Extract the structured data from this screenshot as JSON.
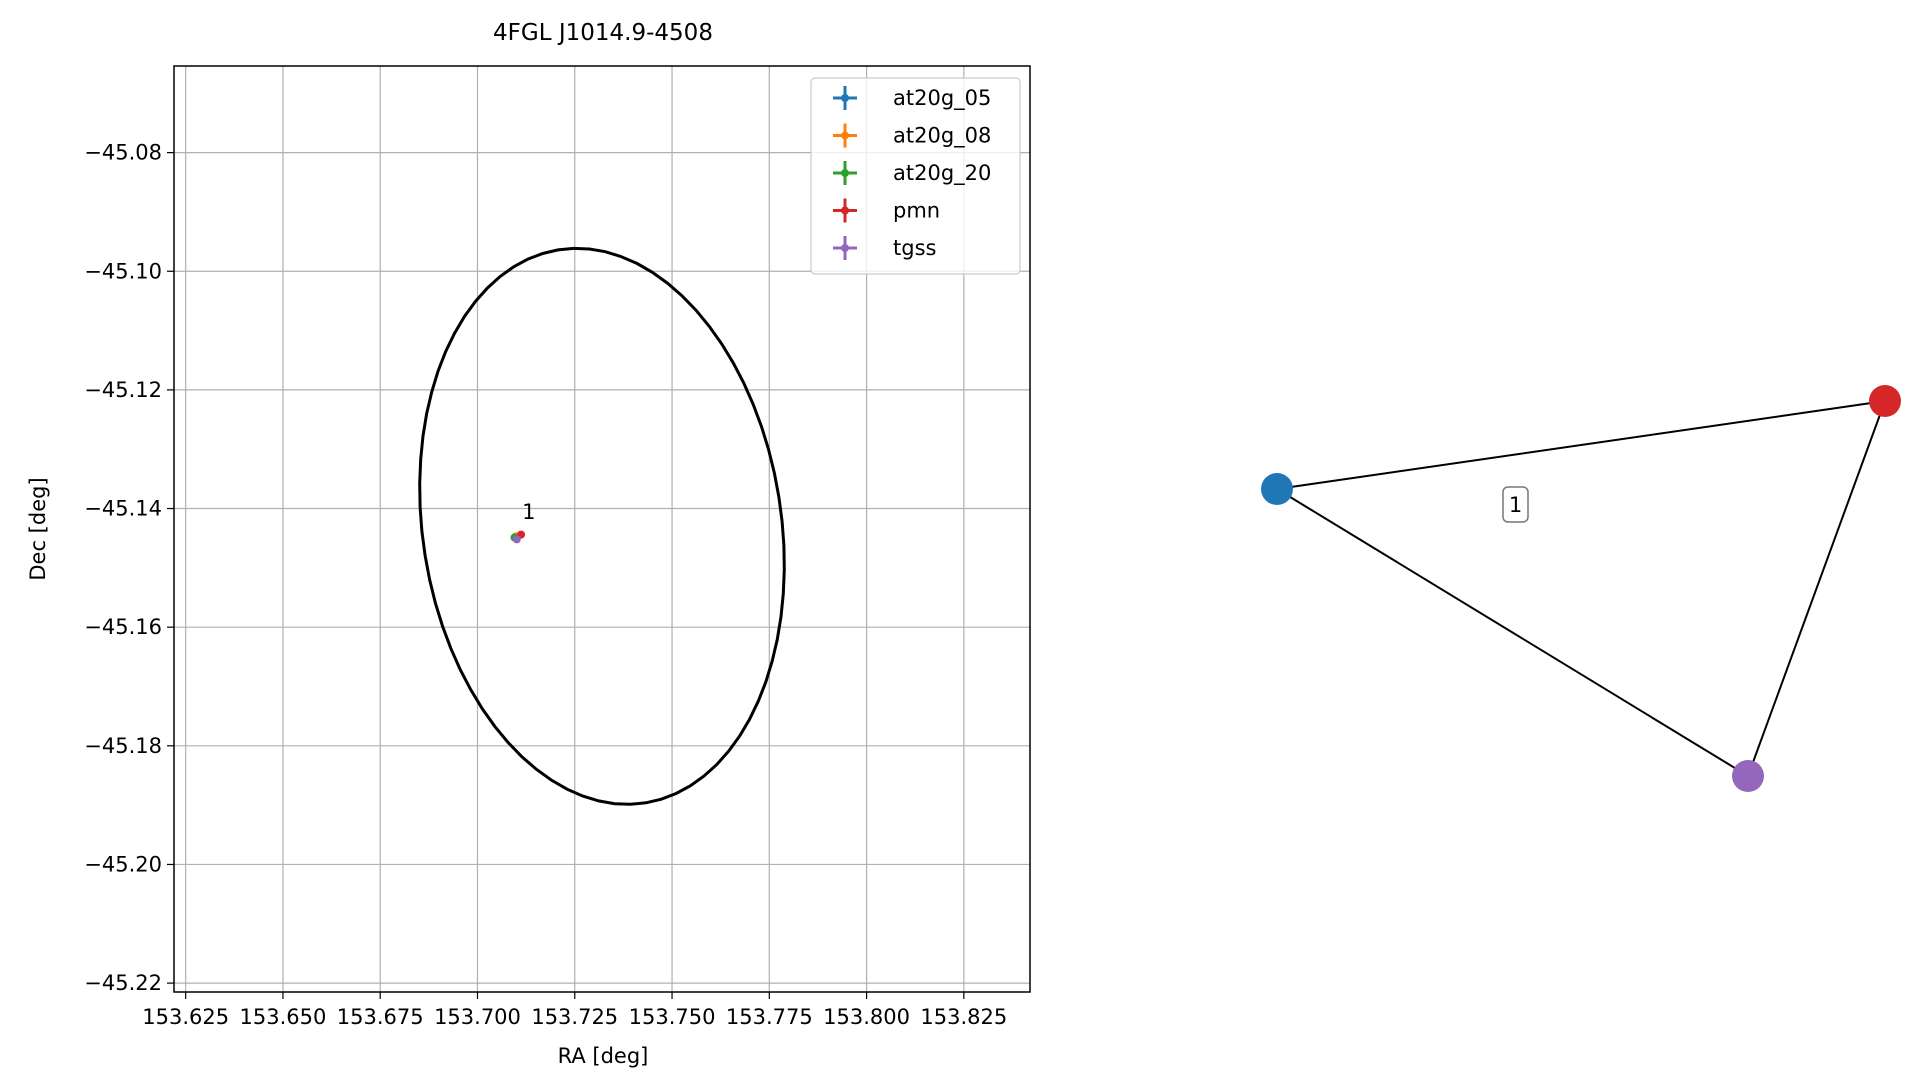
{
  "chart_data": [
    {
      "type": "scatter",
      "title": "4FGL J1014.9-4508",
      "xlabel": "RA [deg]",
      "ylabel": "Dec [deg]",
      "xlim": [
        153.622,
        153.842
      ],
      "ylim": [
        -45.2215,
        -45.0654
      ],
      "xticks": [
        153.625,
        153.65,
        153.675,
        153.7,
        153.725,
        153.75,
        153.775,
        153.8,
        153.825
      ],
      "xtick_labels": [
        "153.625",
        "153.650",
        "153.675",
        "153.700",
        "153.725",
        "153.750",
        "153.775",
        "153.800",
        "153.825"
      ],
      "yticks": [
        -45.08,
        -45.1,
        -45.12,
        -45.14,
        -45.16,
        -45.18,
        -45.2,
        -45.22
      ],
      "ytick_labels": [
        "−45.08",
        "−45.10",
        "−45.12",
        "−45.14",
        "−45.16",
        "−45.18",
        "−45.20",
        "−45.22"
      ],
      "grid": true,
      "legend_position": "top-right",
      "ellipse": {
        "center": [
          153.732,
          -45.143
        ],
        "semi_axes": [
          0.05,
          0.0435
        ],
        "tilt_deg": -45,
        "color": "#000000"
      },
      "series": [
        {
          "name": "at20g_05",
          "color": "#1f77b4",
          "x": [
            153.7097
          ],
          "y": [
            -45.1448
          ]
        },
        {
          "name": "at20g_08",
          "color": "#ff7f0e",
          "x": [
            153.7099
          ],
          "y": [
            -45.1447
          ]
        },
        {
          "name": "at20g_20",
          "color": "#2ca02c",
          "x": [
            153.7095
          ],
          "y": [
            -45.1449
          ]
        },
        {
          "name": "pmn",
          "color": "#d62728",
          "x": [
            153.7112
          ],
          "y": [
            -45.1444
          ]
        },
        {
          "name": "tgss",
          "color": "#9467bd",
          "x": [
            153.7101
          ],
          "y": [
            -45.1452
          ]
        }
      ],
      "annotations": [
        {
          "text": "1",
          "x": 153.7132,
          "y": -45.1418
        }
      ]
    },
    {
      "type": "network",
      "nodes": [
        {
          "id": "at20g_05",
          "color": "#1f77b4"
        },
        {
          "id": "pmn",
          "color": "#d62728"
        },
        {
          "id": "tgss",
          "color": "#9467bd"
        }
      ],
      "edges": [
        {
          "source": "at20g_05",
          "target": "pmn"
        },
        {
          "source": "at20g_05",
          "target": "tgss"
        },
        {
          "source": "pmn",
          "target": "tgss"
        }
      ],
      "edge_label": "1"
    }
  ]
}
